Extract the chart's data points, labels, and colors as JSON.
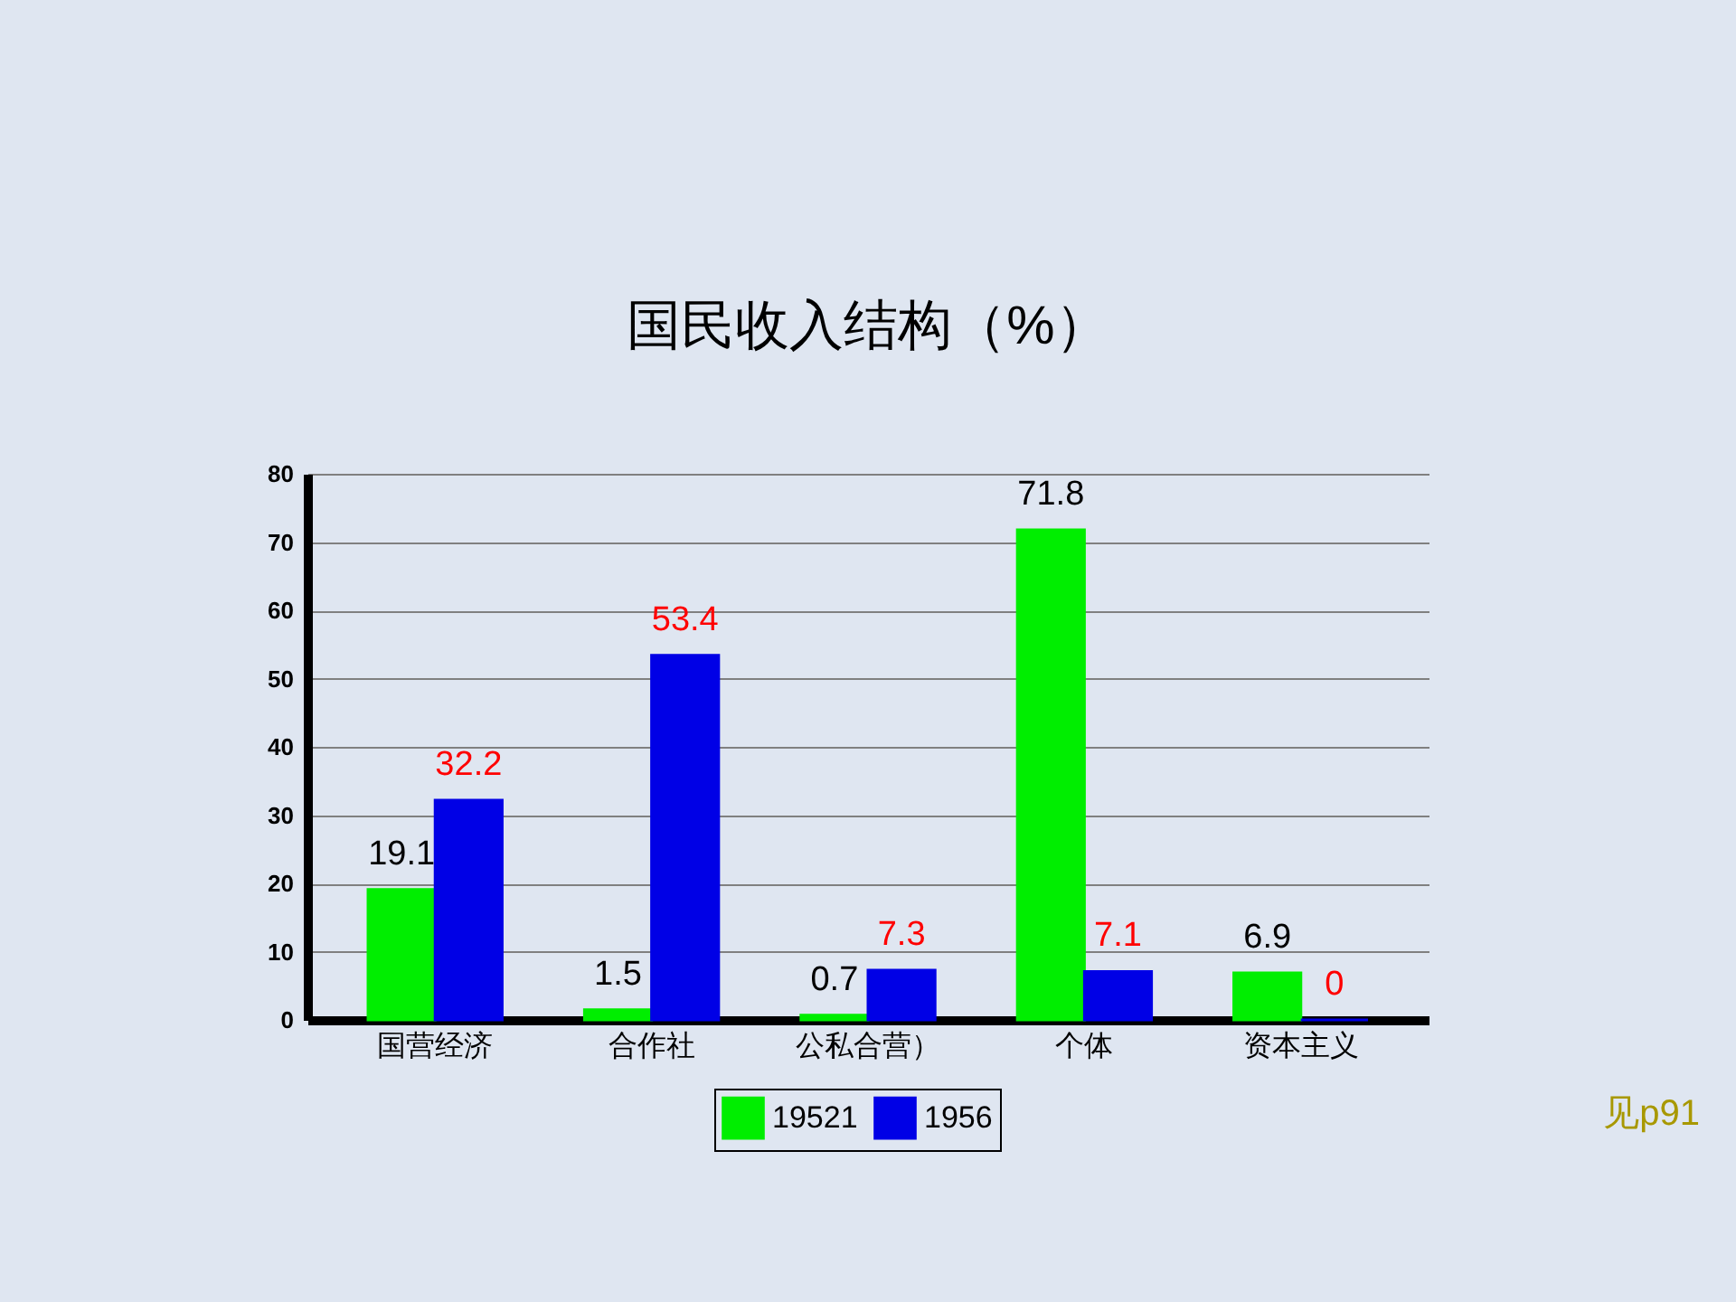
{
  "chart_data": {
    "type": "bar",
    "title": "国民收入结构（%）",
    "categories": [
      "国营经济",
      "合作社",
      "公私合营）",
      "个体",
      "资本主义"
    ],
    "series": [
      {
        "name": "19521",
        "color": "#00ee00",
        "values": [
          19.1,
          1.5,
          0.7,
          71.8,
          6.9
        ]
      },
      {
        "name": "1956",
        "color": "#0000e6",
        "values": [
          32.2,
          53.4,
          7.3,
          7.1,
          0
        ]
      }
    ],
    "ylim": [
      0,
      80
    ],
    "yticks": [
      0,
      10,
      20,
      30,
      40,
      50,
      60,
      70,
      80
    ],
    "grid": "y",
    "legend": "bottom",
    "data_labels": true,
    "annotations": [
      "见p91"
    ]
  }
}
